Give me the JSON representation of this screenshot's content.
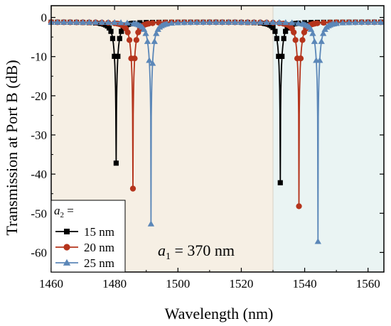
{
  "chart_data": {
    "type": "line",
    "title": "",
    "xlabel": "Wavelength (nm)",
    "ylabel": "Transmission at Port B (dB)",
    "xlim": [
      1460,
      1565
    ],
    "ylim": [
      -65,
      3
    ],
    "xticks": [
      1460,
      1480,
      1500,
      1520,
      1540,
      1560
    ],
    "yticks": [
      0,
      -10,
      -20,
      -30,
      -40,
      -50,
      -60
    ],
    "background_regions": [
      {
        "x_from": 1460,
        "x_to": 1530,
        "color": "#f6efe4"
      },
      {
        "x_from": 1530,
        "x_to": 1565,
        "color": "#eaf4f3"
      }
    ],
    "annotation": {
      "base": "a",
      "sub": "1",
      "rest": " = 370 nm"
    },
    "legend": {
      "title_base": "a",
      "title_sub": "2",
      "title_rest": " =",
      "placement": "bottom-left"
    },
    "series": [
      {
        "name": "15 nm",
        "color": "#000000",
        "marker": "square",
        "dips": [
          {
            "center": 1480.5,
            "depth": 36,
            "half_width": 1.4
          },
          {
            "center": 1532.3,
            "depth": 41,
            "half_width": 1.4
          }
        ]
      },
      {
        "name": "20 nm",
        "color": "#b5341c",
        "marker": "circle",
        "dips": [
          {
            "center": 1485.8,
            "depth": 42.5,
            "half_width": 1.5
          },
          {
            "center": 1538.2,
            "depth": 47,
            "half_width": 1.5
          }
        ]
      },
      {
        "name": "25 nm",
        "color": "#5b87b8",
        "marker": "triangle",
        "dips": [
          {
            "center": 1491.5,
            "depth": 51.5,
            "half_width": 1.6
          },
          {
            "center": 1544.2,
            "depth": 56,
            "half_width": 1.6
          }
        ]
      }
    ]
  }
}
